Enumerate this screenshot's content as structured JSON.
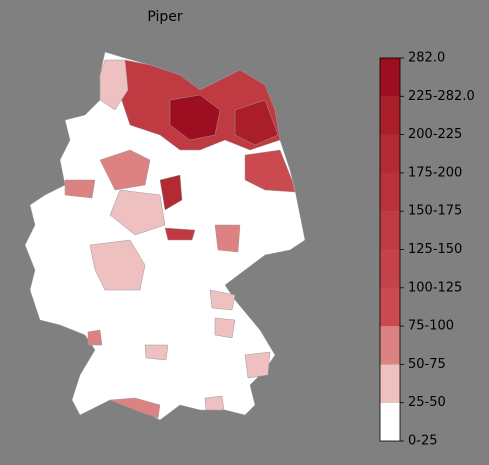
{
  "title": "Piper",
  "legend": {
    "labels": [
      "0-25",
      "25-50",
      "50-75",
      "75-100",
      "100-125",
      "125-150",
      "150-175",
      "175-200",
      "200-225",
      "225-282.0",
      "282.0"
    ],
    "colors": [
      "#ffffff",
      "#efc0c0",
      "#dc8282",
      "#ca4a50",
      "#c5424a",
      "#c03a42",
      "#bb323a",
      "#b42a32",
      "#aa1e2a",
      "#9c0e20"
    ]
  }
}
